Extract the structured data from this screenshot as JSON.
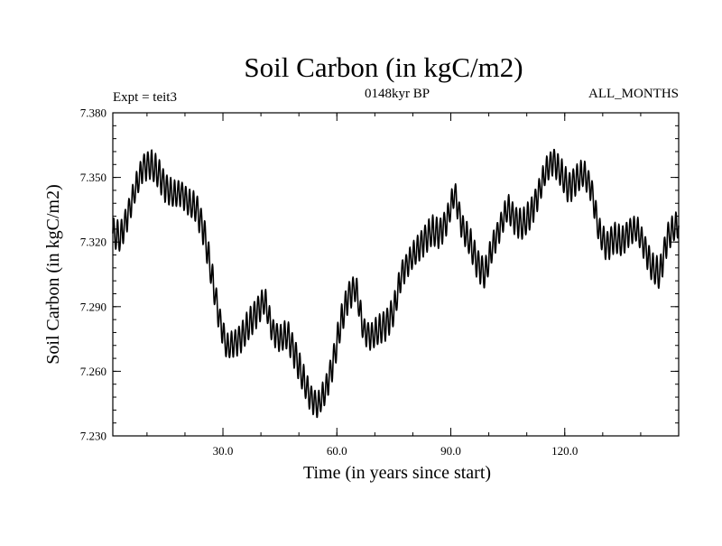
{
  "chart_data": {
    "type": "line",
    "title": "Soil Carbon (in kgC/m2)",
    "subtitle_left": "Expt = teit3",
    "subtitle_center": "0148kyr BP",
    "subtitle_right": "ALL_MONTHS",
    "xlabel": "Time (in years since start)",
    "ylabel": "Soil Carbon (in kgC/m2)",
    "xlim": [
      1,
      150
    ],
    "ylim": [
      7.23,
      7.38
    ],
    "x_ticks": [
      30,
      60,
      90,
      120
    ],
    "x_tick_labels": [
      "30.0",
      "60.0",
      "90.0",
      "120.0"
    ],
    "y_ticks": [
      7.23,
      7.26,
      7.29,
      7.32,
      7.35,
      7.38
    ],
    "y_tick_labels": [
      "7.230",
      "7.260",
      "7.290",
      "7.320",
      "7.350",
      "7.380"
    ],
    "grid": false,
    "series": [
      {
        "name": "Soil Carbon",
        "seasonal_amplitude": 0.0065,
        "x": [
          1,
          3,
          5,
          7,
          9,
          11,
          13,
          15,
          17,
          19,
          21,
          23,
          25,
          27,
          29,
          31,
          33,
          35,
          37,
          39,
          41,
          43,
          45,
          47,
          49,
          51,
          53,
          55,
          57,
          59,
          61,
          63,
          65,
          67,
          69,
          71,
          73,
          75,
          77,
          79,
          81,
          83,
          85,
          87,
          89,
          91,
          93,
          95,
          97,
          99,
          101,
          103,
          105,
          107,
          109,
          111,
          113,
          115,
          117,
          119,
          121,
          123,
          125,
          127,
          129,
          131,
          133,
          135,
          137,
          139,
          141,
          143,
          145,
          147,
          149,
          150
        ],
        "values": [
          7.324,
          7.322,
          7.333,
          7.345,
          7.355,
          7.356,
          7.352,
          7.345,
          7.342,
          7.343,
          7.338,
          7.336,
          7.325,
          7.305,
          7.285,
          7.271,
          7.273,
          7.276,
          7.282,
          7.288,
          7.293,
          7.279,
          7.275,
          7.277,
          7.268,
          7.257,
          7.248,
          7.244,
          7.251,
          7.264,
          7.282,
          7.295,
          7.299,
          7.279,
          7.276,
          7.279,
          7.282,
          7.288,
          7.305,
          7.311,
          7.316,
          7.321,
          7.325,
          7.324,
          7.33,
          7.343,
          7.327,
          7.32,
          7.31,
          7.305,
          7.318,
          7.327,
          7.336,
          7.33,
          7.328,
          7.333,
          7.342,
          7.353,
          7.358,
          7.352,
          7.345,
          7.349,
          7.352,
          7.345,
          7.325,
          7.318,
          7.322,
          7.32,
          7.325,
          7.326,
          7.318,
          7.308,
          7.305,
          7.322,
          7.327,
          7.328
        ]
      }
    ]
  }
}
